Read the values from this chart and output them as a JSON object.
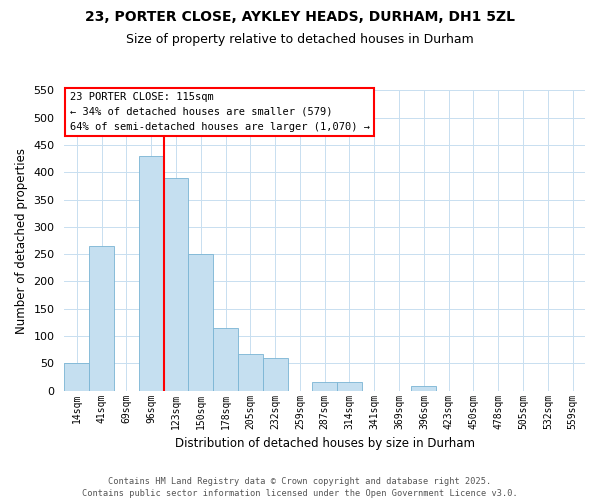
{
  "title": "23, PORTER CLOSE, AYKLEY HEADS, DURHAM, DH1 5ZL",
  "subtitle": "Size of property relative to detached houses in Durham",
  "xlabel": "Distribution of detached houses by size in Durham",
  "ylabel": "Number of detached properties",
  "bar_color": "#c5dff0",
  "bar_edge_color": "#7ab4d4",
  "bin_labels": [
    "14sqm",
    "41sqm",
    "69sqm",
    "96sqm",
    "123sqm",
    "150sqm",
    "178sqm",
    "205sqm",
    "232sqm",
    "259sqm",
    "287sqm",
    "314sqm",
    "341sqm",
    "369sqm",
    "396sqm",
    "423sqm",
    "450sqm",
    "478sqm",
    "505sqm",
    "532sqm",
    "559sqm"
  ],
  "bar_heights": [
    50,
    265,
    0,
    430,
    390,
    250,
    115,
    68,
    60,
    0,
    15,
    15,
    0,
    0,
    8,
    0,
    0,
    0,
    0,
    0,
    0
  ],
  "ylim": [
    0,
    550
  ],
  "yticks": [
    0,
    50,
    100,
    150,
    200,
    250,
    300,
    350,
    400,
    450,
    500,
    550
  ],
  "vline_x_index": 3.5,
  "annotation_title": "23 PORTER CLOSE: 115sqm",
  "annotation_line1": "← 34% of detached houses are smaller (579)",
  "annotation_line2": "64% of semi-detached houses are larger (1,070) →",
  "footer_line1": "Contains HM Land Registry data © Crown copyright and database right 2025.",
  "footer_line2": "Contains public sector information licensed under the Open Government Licence v3.0.",
  "bg_color": "#ffffff",
  "grid_color": "#c8dff0"
}
